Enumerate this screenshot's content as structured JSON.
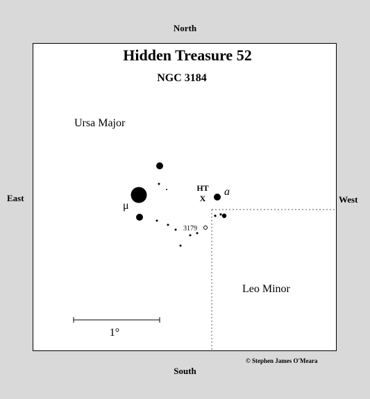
{
  "directions": {
    "north": "North",
    "south": "South",
    "east": "East",
    "west": "West"
  },
  "map": {
    "title": "Hidden Treasure 52",
    "subtitle": "NGC 3184",
    "regions": {
      "upper_left": "Ursa Major",
      "lower_right": "Leo Minor"
    },
    "labels": {
      "ht": "HT",
      "x": "X",
      "mu": "μ",
      "a": "a",
      "ngc": "3179"
    },
    "scale_label": "1°",
    "copyright": "© Stephen James O'Meara"
  }
}
